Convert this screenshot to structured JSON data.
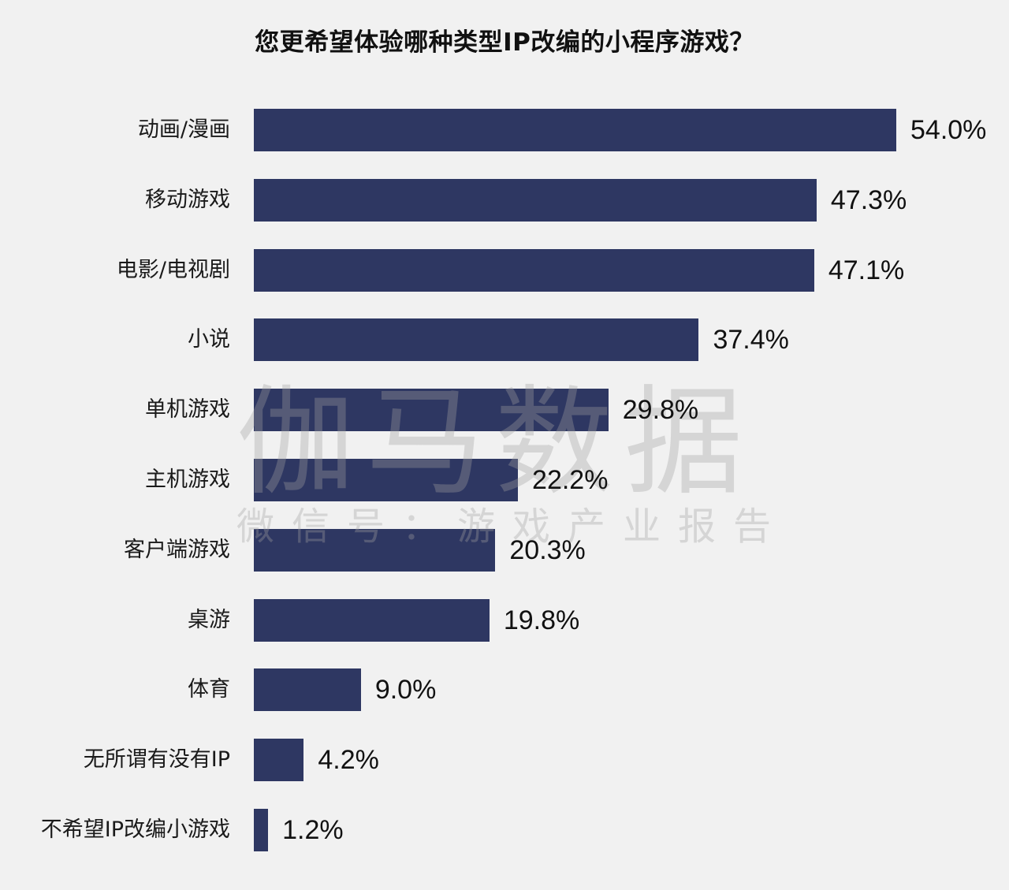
{
  "title": "您更希望体验哪种类型IP改编的小程序游戏？",
  "watermark": {
    "main": "伽马数据",
    "sub": "微信号：游戏产业报告"
  },
  "colors": {
    "bar": "#2e3762",
    "background": "#f1f1f1"
  },
  "chart_data": {
    "type": "bar",
    "orientation": "horizontal",
    "title": "您更希望体验哪种类型IP改编的小程序游戏？",
    "xlabel": "",
    "ylabel": "",
    "grid": false,
    "legend": null,
    "unit": "%",
    "categories": [
      "动画/漫画",
      "移动游戏",
      "电影/电视剧",
      "小说",
      "单机游戏",
      "主机游戏",
      "客户端游戏",
      "桌游",
      "体育",
      "无所谓有没有IP",
      "不希望IP改编小游戏"
    ],
    "values": [
      54.0,
      47.3,
      47.1,
      37.4,
      29.8,
      22.2,
      20.3,
      19.8,
      9.0,
      4.2,
      1.2
    ],
    "value_labels": [
      "54.0%",
      "47.3%",
      "47.1%",
      "37.4%",
      "29.8%",
      "22.2%",
      "20.3%",
      "19.8%",
      "9.0%",
      "4.2%",
      "1.2%"
    ],
    "xlim": [
      0,
      54
    ]
  }
}
